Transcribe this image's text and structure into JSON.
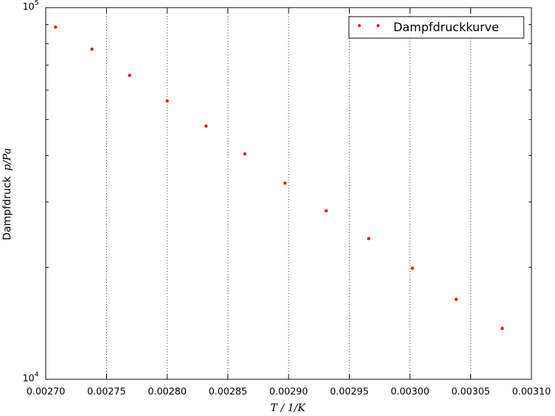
{
  "chart_data": {
    "type": "scatter",
    "series": [
      {
        "name": "Dampfdruckkurve",
        "color": "#ff0000",
        "x": [
          0.002708,
          0.002738,
          0.002769,
          0.0028,
          0.002832,
          0.002864,
          0.002897,
          0.002931,
          0.002966,
          0.003002,
          0.003038,
          0.003076
        ],
        "y": [
          88600,
          77300,
          65700,
          56100,
          48000,
          40400,
          33700,
          28400,
          23900,
          19900,
          16400,
          13700
        ]
      }
    ],
    "xlim": [
      0.0027,
      0.0031
    ],
    "ylim": [
      10000,
      100000
    ],
    "yscale": "log",
    "x_ticks": [
      {
        "value": 0.0027,
        "label": "0.00270"
      },
      {
        "value": 0.00275,
        "label": "0.00275"
      },
      {
        "value": 0.0028,
        "label": "0.00280"
      },
      {
        "value": 0.00285,
        "label": "0.00285"
      },
      {
        "value": 0.0029,
        "label": "0.00290"
      },
      {
        "value": 0.00295,
        "label": "0.00295"
      },
      {
        "value": 0.003,
        "label": "0.00300"
      },
      {
        "value": 0.00305,
        "label": "0.00305"
      },
      {
        "value": 0.0031,
        "label": "0.00310"
      }
    ],
    "y_ticks": [
      {
        "value": 10000,
        "base": "10",
        "exp": "4"
      },
      {
        "value": 100000,
        "base": "10",
        "exp": "5"
      }
    ],
    "xlabel": "T / 1/K",
    "ylabel_text": "Dampfdruck",
    "ylabel_math": "p/Pa",
    "grid": "vertical dotted",
    "legend_placement": "top-right"
  }
}
